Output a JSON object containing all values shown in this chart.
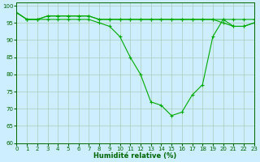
{
  "xlabel": "Humidité relative (%)",
  "background_color": "#cceeff",
  "grid_color": "#aaccbb",
  "line_color": "#00aa00",
  "xlim": [
    0,
    23
  ],
  "ylim": [
    60,
    101
  ],
  "yticks": [
    60,
    65,
    70,
    75,
    80,
    85,
    90,
    95,
    100
  ],
  "xticks": [
    0,
    1,
    2,
    3,
    4,
    5,
    6,
    7,
    8,
    9,
    10,
    11,
    12,
    13,
    14,
    15,
    16,
    17,
    18,
    19,
    20,
    21,
    22,
    23
  ],
  "series1": [
    98,
    96,
    96,
    97,
    97,
    97,
    97,
    97,
    96,
    96,
    96,
    96,
    96,
    96,
    96,
    96,
    96,
    96,
    96,
    96,
    96,
    96,
    96,
    96
  ],
  "series2": [
    98,
    96,
    96,
    97,
    97,
    97,
    97,
    97,
    96,
    96,
    96,
    96,
    96,
    96,
    96,
    96,
    96,
    96,
    96,
    96,
    95,
    94,
    94,
    95
  ],
  "series3": [
    98,
    96,
    96,
    96,
    96,
    96,
    96,
    96,
    95,
    94,
    91,
    85,
    80,
    72,
    71,
    68,
    69,
    74,
    77,
    91,
    96,
    94,
    94,
    95
  ]
}
